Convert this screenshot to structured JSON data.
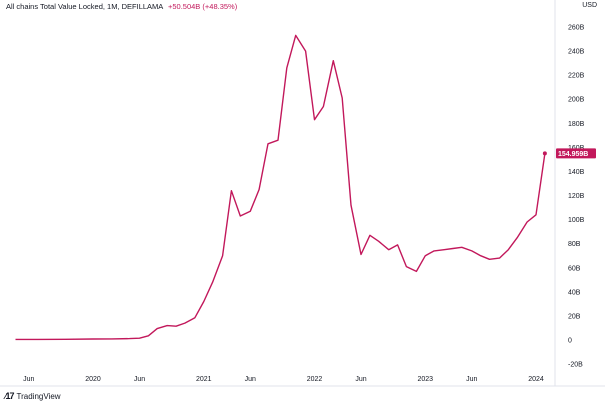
{
  "legend": {
    "title": "All chains Total Value Locked, 1M, DEFILLAMA",
    "change": "+50.504B (+48.35%)"
  },
  "currency": "USD",
  "brand": "TradingView",
  "last_value_label": "154.959B",
  "colors": {
    "line": "#c2185b",
    "text": "#131722",
    "grid": "#eef0f3"
  },
  "chart_data": {
    "type": "line",
    "title": "All chains Total Value Locked, 1M, DEFILLAMA",
    "xlabel": "",
    "ylabel": "",
    "ylim": [
      -20,
      270
    ],
    "xlim": [
      2019.3,
      2024.25
    ],
    "y_ticks": [
      -20,
      0,
      20,
      40,
      60,
      80,
      100,
      120,
      140,
      160,
      180,
      200,
      220,
      240,
      260
    ],
    "y_tick_labels": [
      "-20B",
      "0",
      "20B",
      "40B",
      "60B",
      "80B",
      "100B",
      "120B",
      "140B",
      "160B",
      "180B",
      "200B",
      "220B",
      "240B",
      "260B"
    ],
    "x_ticks": [
      {
        "x": 2019.42,
        "label": "Jun"
      },
      {
        "x": 2020.0,
        "label": "2020"
      },
      {
        "x": 2020.42,
        "label": "Jun"
      },
      {
        "x": 2021.0,
        "label": "2021"
      },
      {
        "x": 2021.42,
        "label": "Jun"
      },
      {
        "x": 2022.0,
        "label": "2022"
      },
      {
        "x": 2022.42,
        "label": "Jun"
      },
      {
        "x": 2023.0,
        "label": "2023"
      },
      {
        "x": 2023.42,
        "label": "Jun"
      },
      {
        "x": 2024.0,
        "label": "2024"
      }
    ],
    "grid": false,
    "series": [
      {
        "name": "All chains Total Value Locked",
        "x": [
          2019.3,
          2019.5,
          2019.75,
          2020.0,
          2020.17,
          2020.33,
          2020.42,
          2020.5,
          2020.58,
          2020.67,
          2020.75,
          2020.83,
          2020.92,
          2021.0,
          2021.08,
          2021.17,
          2021.25,
          2021.33,
          2021.42,
          2021.5,
          2021.58,
          2021.67,
          2021.75,
          2021.83,
          2021.92,
          2022.0,
          2022.08,
          2022.17,
          2022.25,
          2022.33,
          2022.42,
          2022.5,
          2022.58,
          2022.67,
          2022.75,
          2022.83,
          2022.92,
          2023.0,
          2023.08,
          2023.17,
          2023.25,
          2023.33,
          2023.42,
          2023.5,
          2023.58,
          2023.67,
          2023.75,
          2023.83,
          2023.92,
          2024.0,
          2024.08
        ],
        "y": [
          0.5,
          0.5,
          0.6,
          0.8,
          0.9,
          1.2,
          1.5,
          3.5,
          9.5,
          12,
          11.5,
          14,
          18.5,
          32,
          48,
          70,
          124,
          103,
          107,
          125,
          163,
          166,
          226,
          253,
          240,
          183,
          194,
          232,
          201,
          112,
          71,
          87,
          82,
          75,
          79,
          61,
          57,
          70,
          74,
          75,
          76,
          77,
          74,
          70,
          67,
          68,
          75,
          85,
          98,
          104,
          155
        ]
      }
    ]
  }
}
